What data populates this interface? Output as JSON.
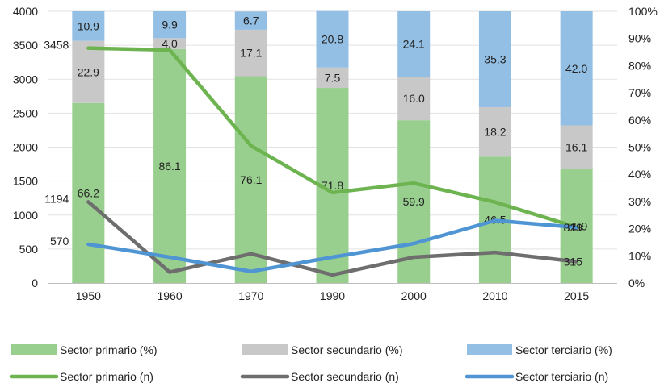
{
  "chart_data": {
    "type": "stacked-bar-with-lines",
    "categories": [
      "1950",
      "1960",
      "1970",
      "1990",
      "2000",
      "2010",
      "2015"
    ],
    "bar_series": [
      {
        "name": "Sector primario (%)",
        "color": "#98cf8e",
        "values": [
          66.2,
          86.1,
          76.1,
          71.8,
          59.9,
          46.5,
          41.9
        ],
        "labels": [
          "66.2",
          "86.1",
          "76.1",
          "71.8",
          "59.9",
          "46.5",
          "41.9"
        ]
      },
      {
        "name": "Sector secundario (%)",
        "color": "#c8c8c8",
        "values": [
          22.9,
          4.0,
          17.1,
          7.5,
          16.0,
          18.2,
          16.1
        ],
        "labels": [
          "22.9",
          "4.0",
          "17.1",
          "7.5",
          "16.0",
          "18.2",
          "16.1"
        ]
      },
      {
        "name": "Sector terciario (%)",
        "color": "#93bfe4",
        "values": [
          10.9,
          9.9,
          6.7,
          20.8,
          24.1,
          35.3,
          42.0
        ],
        "labels": [
          "10.9",
          "9.9",
          "6.7",
          "20.8",
          "24.1",
          "35.3",
          "42.0"
        ]
      }
    ],
    "line_series": [
      {
        "name": "Sector primario (n)",
        "color": "#6db451",
        "values": [
          3458,
          3430,
          2020,
          1330,
          1470,
          1190,
          821
        ]
      },
      {
        "name": "Sector secundario (n)",
        "color": "#6e6e6e",
        "values": [
          1194,
          160,
          430,
          120,
          380,
          450,
          315
        ]
      },
      {
        "name": "Sector terciario (n)",
        "color": "#4f95d4",
        "values": [
          570,
          380,
          170,
          380,
          580,
          920,
          819
        ]
      }
    ],
    "point_labels": [
      {
        "series": 0,
        "index": 0,
        "text": "3458"
      },
      {
        "series": 0,
        "index": 6,
        "text": "821"
      },
      {
        "series": 1,
        "index": 0,
        "text": "1194"
      },
      {
        "series": 1,
        "index": 6,
        "text": "315"
      },
      {
        "series": 2,
        "index": 0,
        "text": "570"
      },
      {
        "series": 2,
        "index": 6,
        "text": "819"
      }
    ],
    "y_left": {
      "min": 0,
      "max": 4000,
      "ticks": [
        "0",
        "500",
        "1000",
        "1500",
        "2000",
        "2500",
        "3000",
        "3500",
        "4000"
      ]
    },
    "y_right": {
      "min": 0,
      "max": 100,
      "ticks": [
        "0%",
        "10%",
        "20%",
        "30%",
        "40%",
        "50%",
        "60%",
        "70%",
        "80%",
        "90%",
        "100%"
      ]
    },
    "legend": {
      "bars": [
        "Sector primario (%)",
        "Sector secundario (%)",
        "Sector terciario (%)"
      ],
      "lines": [
        "Sector primario (n)",
        "Sector secundario (n)",
        "Sector terciario (n)"
      ],
      "placement": "bottom"
    },
    "title": "",
    "xlabel": "",
    "ylabel": ""
  }
}
